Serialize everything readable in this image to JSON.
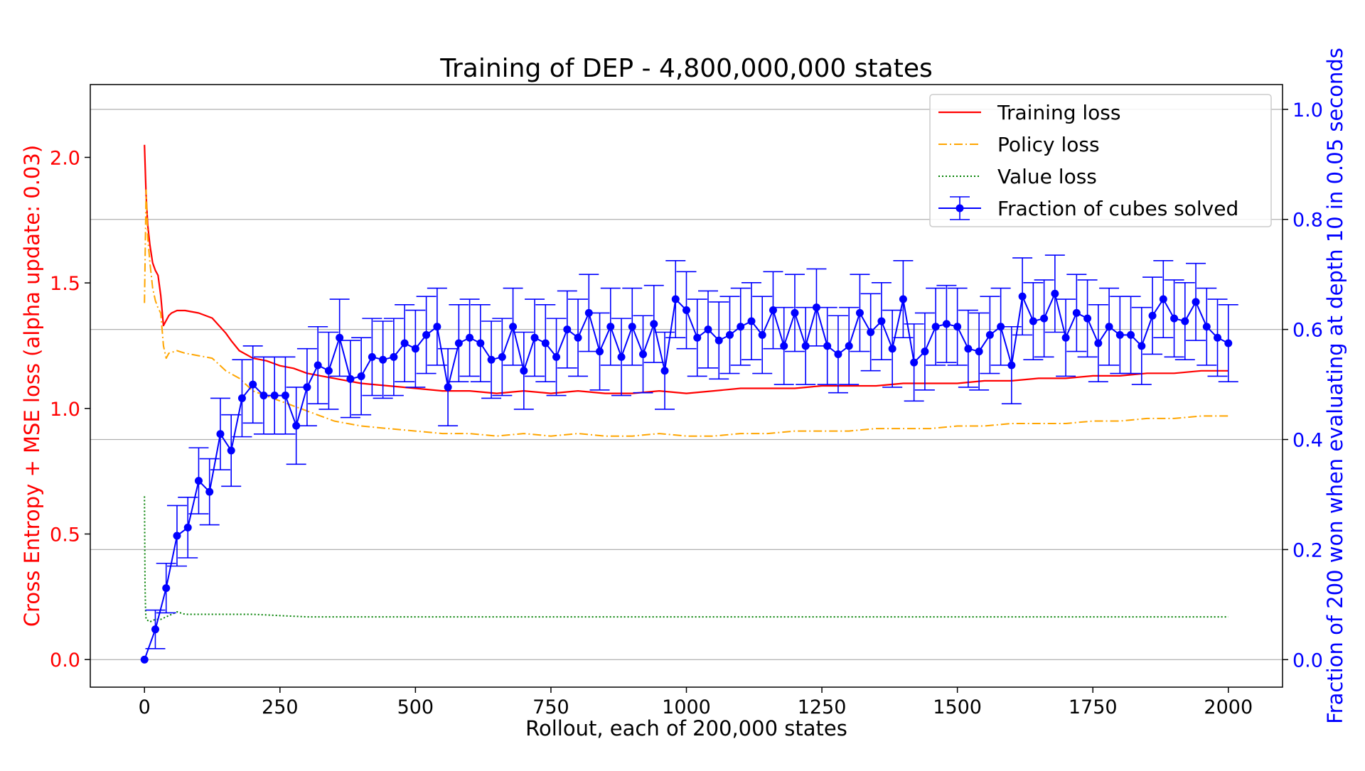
{
  "chart_data": {
    "type": "line",
    "title": "Training of DEP - 4,800,000,000 states",
    "xlabel": "Rollout, each of 200,000 states",
    "ylabel_left": "Cross Entropy + MSE loss (alpha update: 0.03)",
    "ylabel_right": "Fraction of 200 won when evaluating at depth 10 in 0.05 seconds",
    "xlim": [
      -100,
      2100
    ],
    "ylim_left": [
      -0.11,
      2.29
    ],
    "ylim_right": [
      -0.05,
      1.045
    ],
    "xticks": [
      0,
      250,
      500,
      750,
      1000,
      1250,
      1500,
      1750,
      2000
    ],
    "xtick_labels": [
      "0",
      "250",
      "500",
      "750",
      "1000",
      "1250",
      "1500",
      "1750",
      "2000"
    ],
    "yticks_left": [
      0.0,
      0.5,
      1.0,
      1.5,
      2.0
    ],
    "ytick_labels_left": [
      "0.0",
      "0.5",
      "1.0",
      "1.5",
      "2.0"
    ],
    "yticks_right": [
      0.0,
      0.2,
      0.4,
      0.6,
      0.8,
      1.0
    ],
    "ytick_labels_right": [
      "0.0",
      "0.2",
      "0.4",
      "0.6",
      "0.8",
      "1.0"
    ],
    "grid": "horizontal, right axis",
    "legend_position": "top-right",
    "colors": {
      "left_axis": "#ff0000",
      "right_axis": "#0000ff",
      "training": "#ff0000",
      "policy": "#ffa500",
      "value": "#008000",
      "fraction": "#0000ff",
      "grid": "#b0b0b0"
    },
    "series": [
      {
        "name": "Training loss",
        "axis": "left",
        "style": "solid",
        "x": [
          0,
          3,
          6,
          10,
          15,
          20,
          25,
          30,
          35,
          40,
          45,
          50,
          60,
          75,
          100,
          125,
          150,
          160,
          175,
          200,
          225,
          250,
          275,
          300,
          325,
          350,
          400,
          450,
          500,
          550,
          600,
          650,
          700,
          750,
          800,
          850,
          900,
          950,
          1000,
          1050,
          1100,
          1150,
          1200,
          1250,
          1300,
          1350,
          1400,
          1450,
          1500,
          1550,
          1600,
          1650,
          1700,
          1750,
          1800,
          1850,
          1900,
          1950,
          2000
        ],
        "values": [
          2.05,
          1.85,
          1.73,
          1.65,
          1.58,
          1.55,
          1.53,
          1.45,
          1.33,
          1.35,
          1.37,
          1.38,
          1.39,
          1.39,
          1.38,
          1.36,
          1.3,
          1.27,
          1.23,
          1.2,
          1.19,
          1.17,
          1.16,
          1.14,
          1.13,
          1.12,
          1.1,
          1.09,
          1.08,
          1.07,
          1.07,
          1.06,
          1.07,
          1.06,
          1.07,
          1.06,
          1.06,
          1.07,
          1.06,
          1.07,
          1.08,
          1.08,
          1.08,
          1.09,
          1.09,
          1.09,
          1.1,
          1.1,
          1.1,
          1.11,
          1.11,
          1.12,
          1.12,
          1.13,
          1.13,
          1.14,
          1.14,
          1.15,
          1.15
        ]
      },
      {
        "name": "Policy loss",
        "axis": "left",
        "style": "dashdot",
        "x": [
          0,
          3,
          6,
          10,
          15,
          20,
          25,
          30,
          35,
          40,
          45,
          60,
          75,
          100,
          125,
          150,
          175,
          200,
          225,
          250,
          275,
          300,
          325,
          350,
          400,
          450,
          500,
          550,
          600,
          650,
          700,
          750,
          800,
          850,
          900,
          950,
          1000,
          1050,
          1100,
          1150,
          1200,
          1250,
          1300,
          1350,
          1400,
          1450,
          1500,
          1550,
          1600,
          1650,
          1700,
          1750,
          1800,
          1850,
          1900,
          1950,
          2000
        ],
        "values": [
          1.42,
          1.87,
          1.68,
          1.58,
          1.48,
          1.43,
          1.4,
          1.38,
          1.25,
          1.2,
          1.22,
          1.23,
          1.22,
          1.21,
          1.2,
          1.15,
          1.12,
          1.07,
          1.05,
          1.03,
          1.01,
          0.99,
          0.97,
          0.95,
          0.93,
          0.92,
          0.91,
          0.9,
          0.9,
          0.89,
          0.9,
          0.89,
          0.9,
          0.89,
          0.89,
          0.9,
          0.89,
          0.89,
          0.9,
          0.9,
          0.91,
          0.91,
          0.91,
          0.92,
          0.92,
          0.92,
          0.93,
          0.93,
          0.94,
          0.94,
          0.94,
          0.95,
          0.95,
          0.96,
          0.96,
          0.97,
          0.97
        ]
      },
      {
        "name": "Value loss",
        "axis": "left",
        "style": "dotted",
        "x": [
          0,
          1,
          2,
          3,
          10,
          20,
          30,
          40,
          60,
          75,
          100,
          200,
          300,
          400,
          500,
          600,
          700,
          800,
          900,
          1000,
          1100,
          1200,
          1300,
          1400,
          1500,
          1600,
          1700,
          1800,
          1900,
          2000
        ],
        "values": [
          0.65,
          0.3,
          0.19,
          0.16,
          0.15,
          0.16,
          0.16,
          0.17,
          0.19,
          0.18,
          0.18,
          0.18,
          0.17,
          0.17,
          0.17,
          0.17,
          0.17,
          0.17,
          0.17,
          0.17,
          0.17,
          0.17,
          0.17,
          0.17,
          0.17,
          0.17,
          0.17,
          0.17,
          0.17,
          0.17
        ]
      },
      {
        "name": "Fraction of cubes solved",
        "axis": "right",
        "style": "solid-markers-errorbars",
        "x": [
          0,
          20,
          40,
          60,
          80,
          100,
          120,
          140,
          160,
          180,
          200,
          220,
          240,
          260,
          280,
          300,
          320,
          340,
          360,
          380,
          400,
          420,
          440,
          460,
          480,
          500,
          520,
          540,
          560,
          580,
          600,
          620,
          640,
          660,
          680,
          700,
          720,
          740,
          760,
          780,
          800,
          820,
          840,
          860,
          880,
          900,
          920,
          940,
          960,
          980,
          1000,
          1020,
          1040,
          1060,
          1080,
          1100,
          1120,
          1140,
          1160,
          1180,
          1200,
          1220,
          1240,
          1260,
          1280,
          1300,
          1320,
          1340,
          1360,
          1380,
          1400,
          1420,
          1440,
          1460,
          1480,
          1500,
          1520,
          1540,
          1560,
          1580,
          1600,
          1620,
          1640,
          1660,
          1680,
          1700,
          1720,
          1740,
          1760,
          1780,
          1800,
          1820,
          1840,
          1860,
          1880,
          1900,
          1920,
          1940,
          1960,
          1980,
          2000
        ],
        "values": [
          0.0,
          0.055,
          0.13,
          0.225,
          0.24,
          0.325,
          0.305,
          0.41,
          0.38,
          0.475,
          0.5,
          0.48,
          0.48,
          0.48,
          0.425,
          0.495,
          0.535,
          0.525,
          0.585,
          0.51,
          0.515,
          0.55,
          0.545,
          0.55,
          0.575,
          0.565,
          0.59,
          0.605,
          0.495,
          0.575,
          0.585,
          0.575,
          0.545,
          0.55,
          0.605,
          0.525,
          0.585,
          0.575,
          0.55,
          0.6,
          0.585,
          0.63,
          0.56,
          0.605,
          0.55,
          0.605,
          0.555,
          0.61,
          0.525,
          0.655,
          0.635,
          0.585,
          0.6,
          0.58,
          0.59,
          0.605,
          0.615,
          0.59,
          0.635,
          0.57,
          0.63,
          0.57,
          0.64,
          0.57,
          0.555,
          0.57,
          0.63,
          0.595,
          0.615,
          0.565,
          0.655,
          0.54,
          0.56,
          0.605,
          0.61,
          0.605,
          0.565,
          0.56,
          0.59,
          0.605,
          0.535,
          0.66,
          0.615,
          0.62,
          0.665,
          0.585,
          0.63,
          0.62,
          0.575,
          0.605,
          0.59,
          0.59,
          0.57,
          0.625,
          0.655,
          0.62,
          0.615,
          0.65,
          0.605,
          0.585,
          0.575
        ],
        "error": [
          0.0,
          0.035,
          0.045,
          0.055,
          0.055,
          0.06,
          0.06,
          0.065,
          0.065,
          0.07,
          0.07,
          0.07,
          0.07,
          0.07,
          0.07,
          0.07,
          0.07,
          0.07,
          0.07,
          0.07,
          0.07,
          0.07,
          0.07,
          0.07,
          0.07,
          0.07,
          0.07,
          0.07,
          0.07,
          0.07,
          0.07,
          0.07,
          0.07,
          0.07,
          0.07,
          0.07,
          0.07,
          0.07,
          0.07,
          0.07,
          0.07,
          0.07,
          0.07,
          0.07,
          0.07,
          0.07,
          0.07,
          0.07,
          0.07,
          0.07,
          0.07,
          0.07,
          0.07,
          0.07,
          0.07,
          0.07,
          0.07,
          0.07,
          0.07,
          0.07,
          0.07,
          0.07,
          0.07,
          0.07,
          0.07,
          0.07,
          0.07,
          0.07,
          0.07,
          0.07,
          0.07,
          0.07,
          0.07,
          0.07,
          0.07,
          0.07,
          0.07,
          0.07,
          0.07,
          0.07,
          0.07,
          0.07,
          0.07,
          0.07,
          0.07,
          0.07,
          0.07,
          0.07,
          0.07,
          0.07,
          0.07,
          0.07,
          0.07,
          0.07,
          0.07,
          0.07,
          0.07,
          0.07,
          0.07,
          0.07,
          0.07
        ]
      }
    ]
  }
}
